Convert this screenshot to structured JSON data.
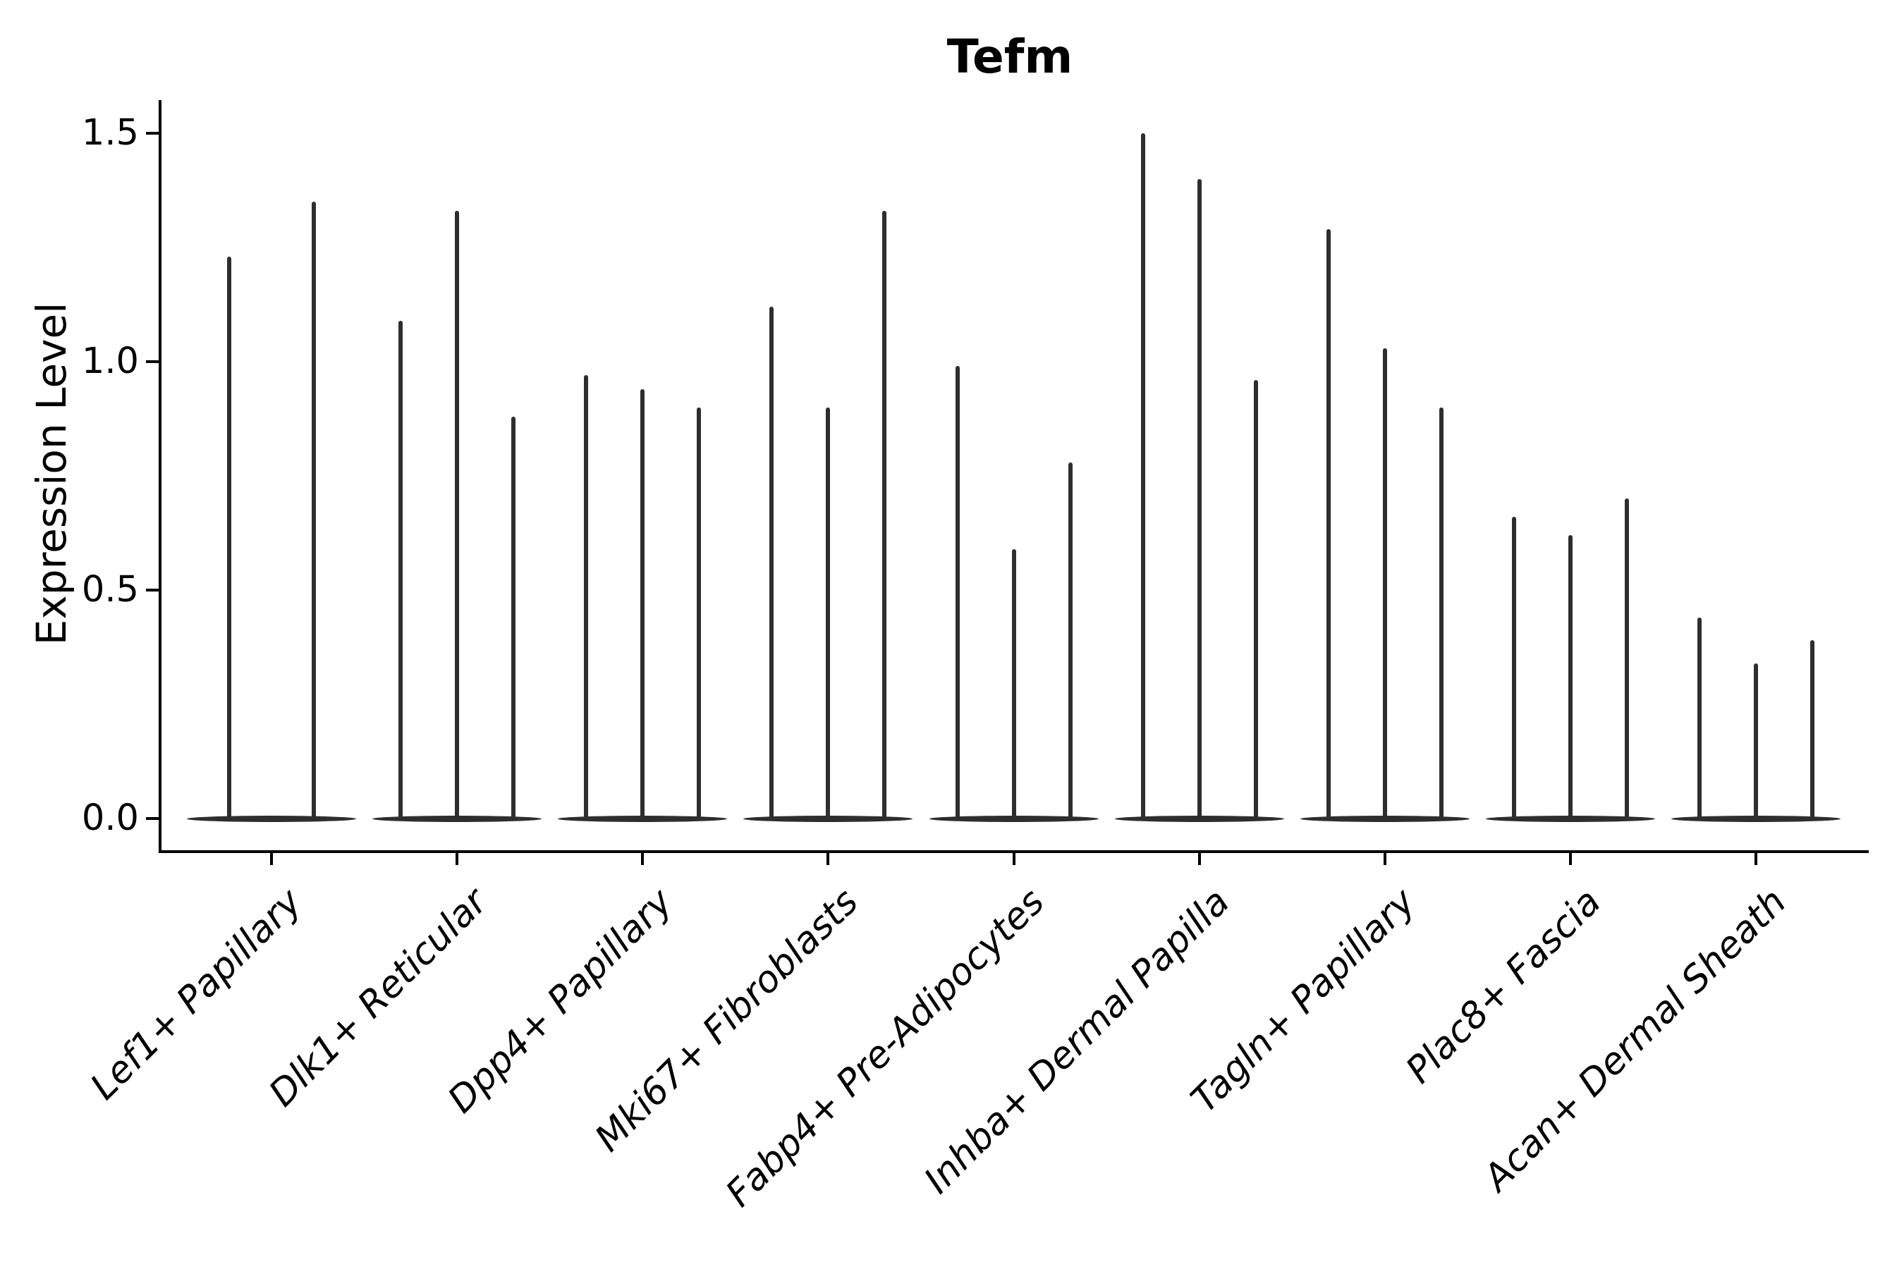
{
  "figure": {
    "title": "Tefm",
    "y_axis_label": "Expression Level"
  },
  "chart_data": {
    "type": "violin",
    "title": "Tefm",
    "xlabel": "",
    "ylabel": "Expression Level",
    "ylim": [
      -0.07,
      1.57
    ],
    "yticks": [
      0.0,
      0.5,
      1.0,
      1.5
    ],
    "ytick_labels": [
      "0.0",
      "0.5",
      "1.0",
      "1.5"
    ],
    "grid": false,
    "legend": "none",
    "categories": [
      "Lef1+ Papillary",
      "Dlk1+ Reticular",
      "Dpp4+ Papillary",
      "Mki67+ Fibroblasts",
      "Fabp4+ Pre-Adipocytes",
      "Inhba+ Dermal Papilla",
      "Tagln+ Papillary",
      "Plac8+ Fascia",
      "Acan+ Dermal Sheath"
    ],
    "groups": [
      {
        "label": "Lef1+ Papillary",
        "violin_count": 2,
        "violin_max_values": [
          1.23,
          1.35
        ]
      },
      {
        "label": "Dlk1+ Reticular",
        "violin_count": 3,
        "violin_max_values": [
          1.09,
          1.33,
          0.88
        ]
      },
      {
        "label": "Dpp4+ Papillary",
        "violin_count": 3,
        "violin_max_values": [
          0.97,
          0.94,
          0.9
        ]
      },
      {
        "label": "Mki67+ Fibroblasts",
        "violin_count": 3,
        "violin_max_values": [
          1.12,
          0.9,
          1.33
        ]
      },
      {
        "label": "Fabp4+ Pre-Adipocytes",
        "violin_count": 3,
        "violin_max_values": [
          0.99,
          0.59,
          0.78
        ]
      },
      {
        "label": "Inhba+ Dermal Papilla",
        "violin_count": 3,
        "violin_max_values": [
          1.5,
          1.4,
          0.96
        ]
      },
      {
        "label": "Tagln+ Papillary",
        "violin_count": 3,
        "violin_max_values": [
          1.29,
          1.03,
          0.9
        ]
      },
      {
        "label": "Plac8+ Fascia",
        "violin_count": 3,
        "violin_max_values": [
          0.66,
          0.62,
          0.7
        ]
      },
      {
        "label": "Acan+ Dermal Sheath",
        "violin_count": 3,
        "violin_max_values": [
          0.44,
          0.34,
          0.39
        ]
      }
    ],
    "description": "Violin plot of Tefm expression; each group contains thin violins whose bodies lie flat at 0 with a narrow spike rising to the maximum expression value.",
    "colors": {
      "violin": "#2e2e2e",
      "axis": "#000000",
      "text": "#000000",
      "background": "#ffffff"
    }
  }
}
